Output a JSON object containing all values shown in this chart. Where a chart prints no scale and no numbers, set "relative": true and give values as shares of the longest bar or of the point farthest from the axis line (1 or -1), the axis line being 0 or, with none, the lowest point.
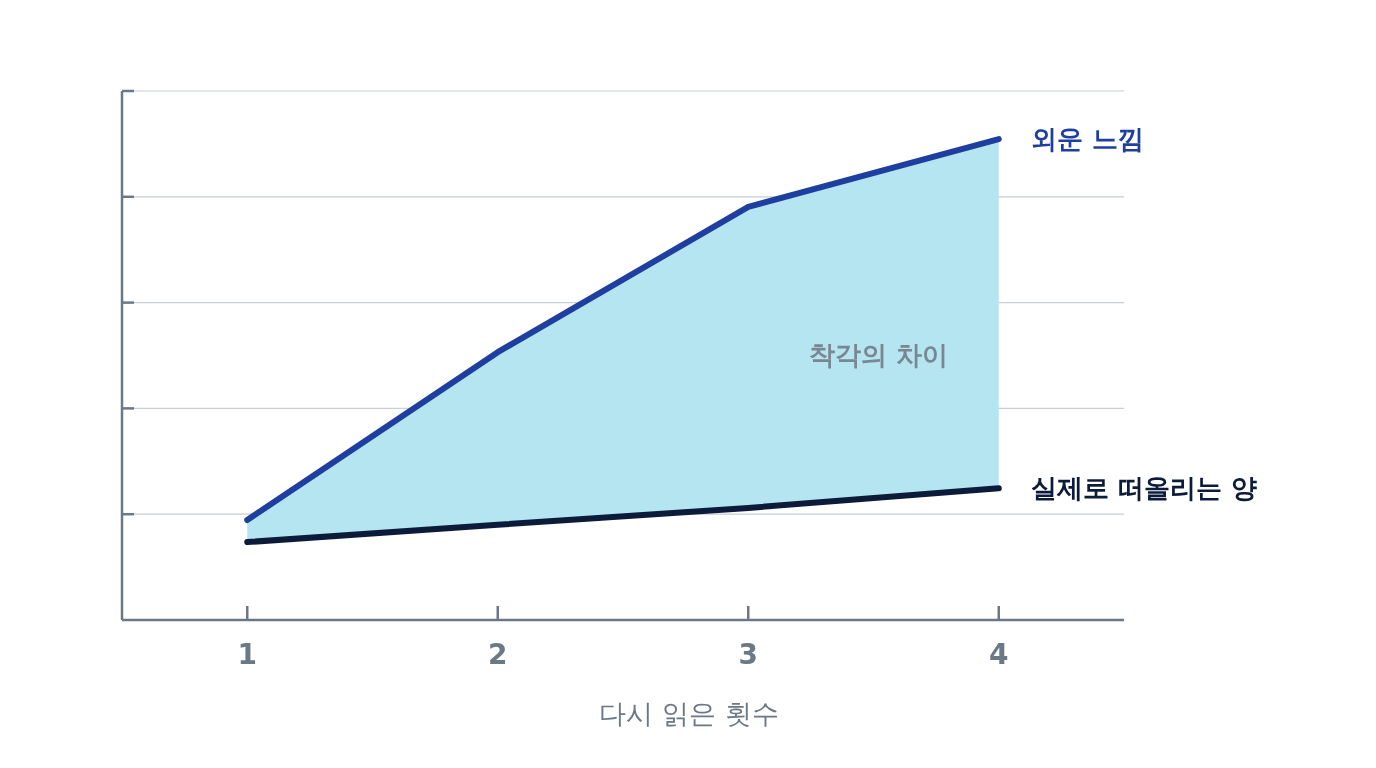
{
  "chart_data": {
    "type": "line",
    "relative": true,
    "xlabel": "다시 읽은 횟수",
    "x": [
      1,
      2,
      3,
      4
    ],
    "xlim": [
      0.5,
      4.5
    ],
    "xticks": [
      1,
      2,
      3,
      4
    ],
    "tick_labels": "x",
    "grid": "y",
    "marker": "none",
    "line_style": "solid",
    "series": [
      {
        "name": "외운 느낌",
        "color": "#1f3fa0",
        "values": [
          0.208,
          0.557,
          0.859,
          1
        ],
        "lower": [
          0.162,
          0.198,
          0.233,
          0.274
        ],
        "upper": [
          0.208,
          0.557,
          0.859,
          1
        ]
      },
      {
        "name": "실제로 떠올리는 양",
        "color": "#0d1b3a",
        "values": [
          0.162,
          0.198,
          0.233,
          0.274
        ]
      }
    ],
    "annotations": [
      "착각의 차이"
    ]
  }
}
